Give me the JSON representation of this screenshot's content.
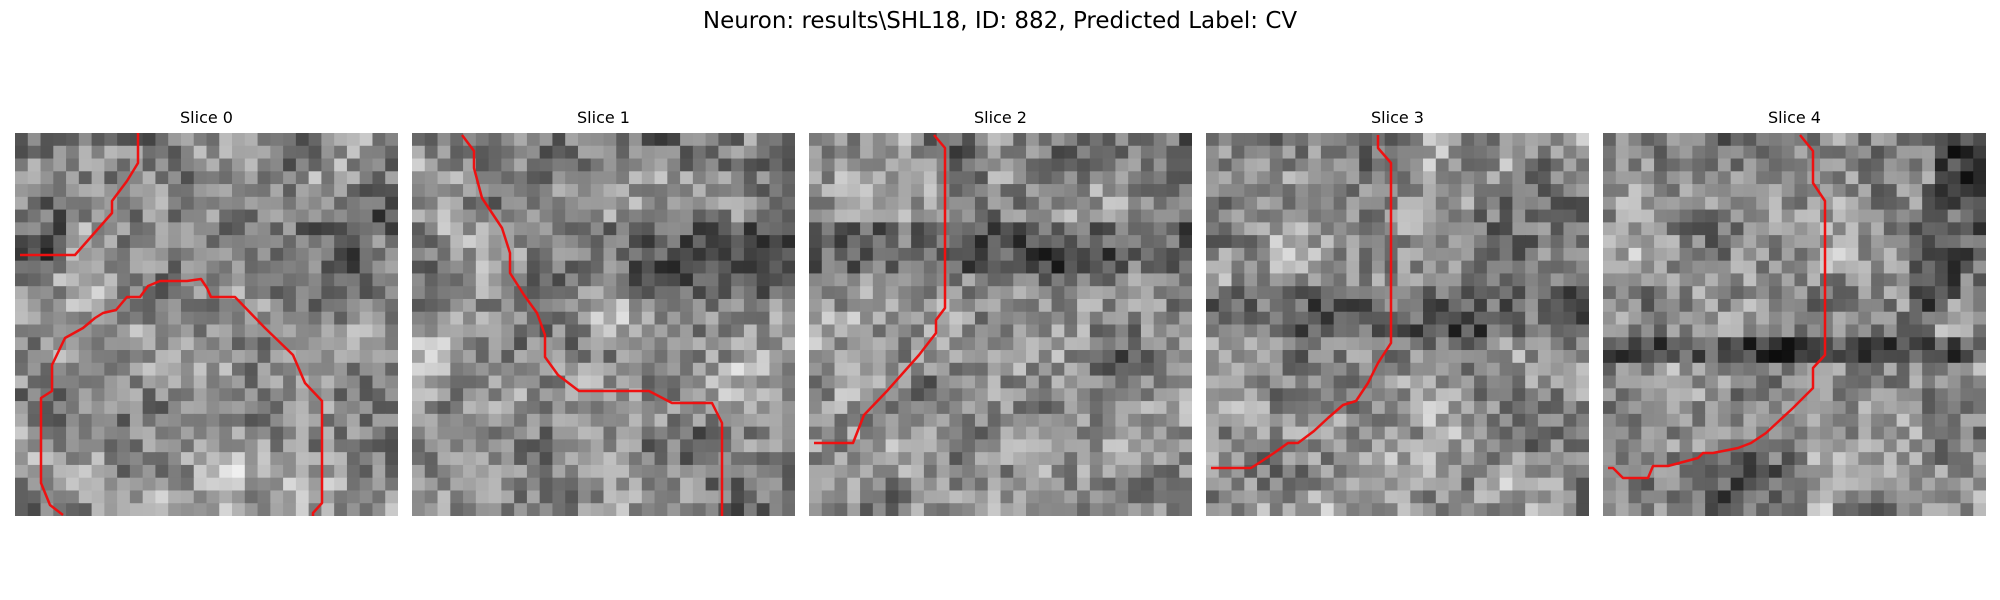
{
  "figure": {
    "title": "Neuron: results\\SHL18, ID: 882, Predicted Label: CV"
  },
  "colors": {
    "contour": "#ee1111",
    "background": "#ffffff"
  },
  "slices": [
    {
      "title": "Slice 0"
    },
    {
      "title": "Slice 1"
    },
    {
      "title": "Slice 2"
    },
    {
      "title": "Slice 3"
    },
    {
      "title": "Slice 4"
    }
  ]
}
